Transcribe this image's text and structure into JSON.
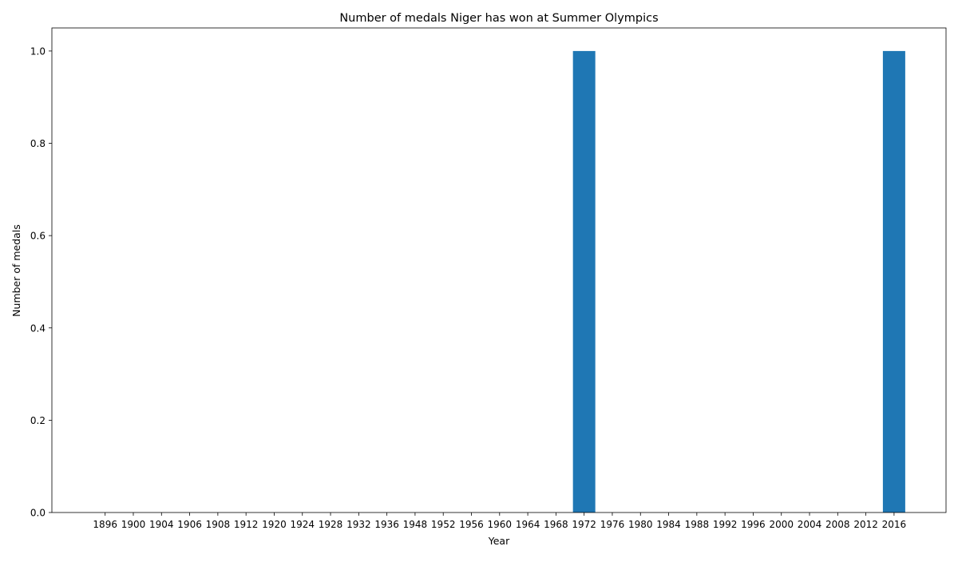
{
  "chart_data": {
    "type": "bar",
    "title": "Number of medals Niger has won at Summer Olympics",
    "xlabel": "Year",
    "ylabel": "Number of medals",
    "categories": [
      "1896",
      "1900",
      "1904",
      "1906",
      "1908",
      "1912",
      "1920",
      "1924",
      "1928",
      "1932",
      "1936",
      "1948",
      "1952",
      "1956",
      "1960",
      "1964",
      "1968",
      "1972",
      "1976",
      "1980",
      "1984",
      "1988",
      "1992",
      "1996",
      "2000",
      "2004",
      "2008",
      "2012",
      "2016"
    ],
    "values": [
      0,
      0,
      0,
      0,
      0,
      0,
      0,
      0,
      0,
      0,
      0,
      0,
      0,
      0,
      0,
      0,
      0,
      1,
      0,
      0,
      0,
      0,
      0,
      0,
      0,
      0,
      0,
      0,
      1
    ],
    "ylim": [
      0,
      1.05
    ],
    "yticks": [
      "0.0",
      "0.2",
      "0.4",
      "0.6",
      "0.8",
      "1.0"
    ],
    "bar_color": "#1f77b4",
    "grid": false,
    "legend": "none"
  }
}
